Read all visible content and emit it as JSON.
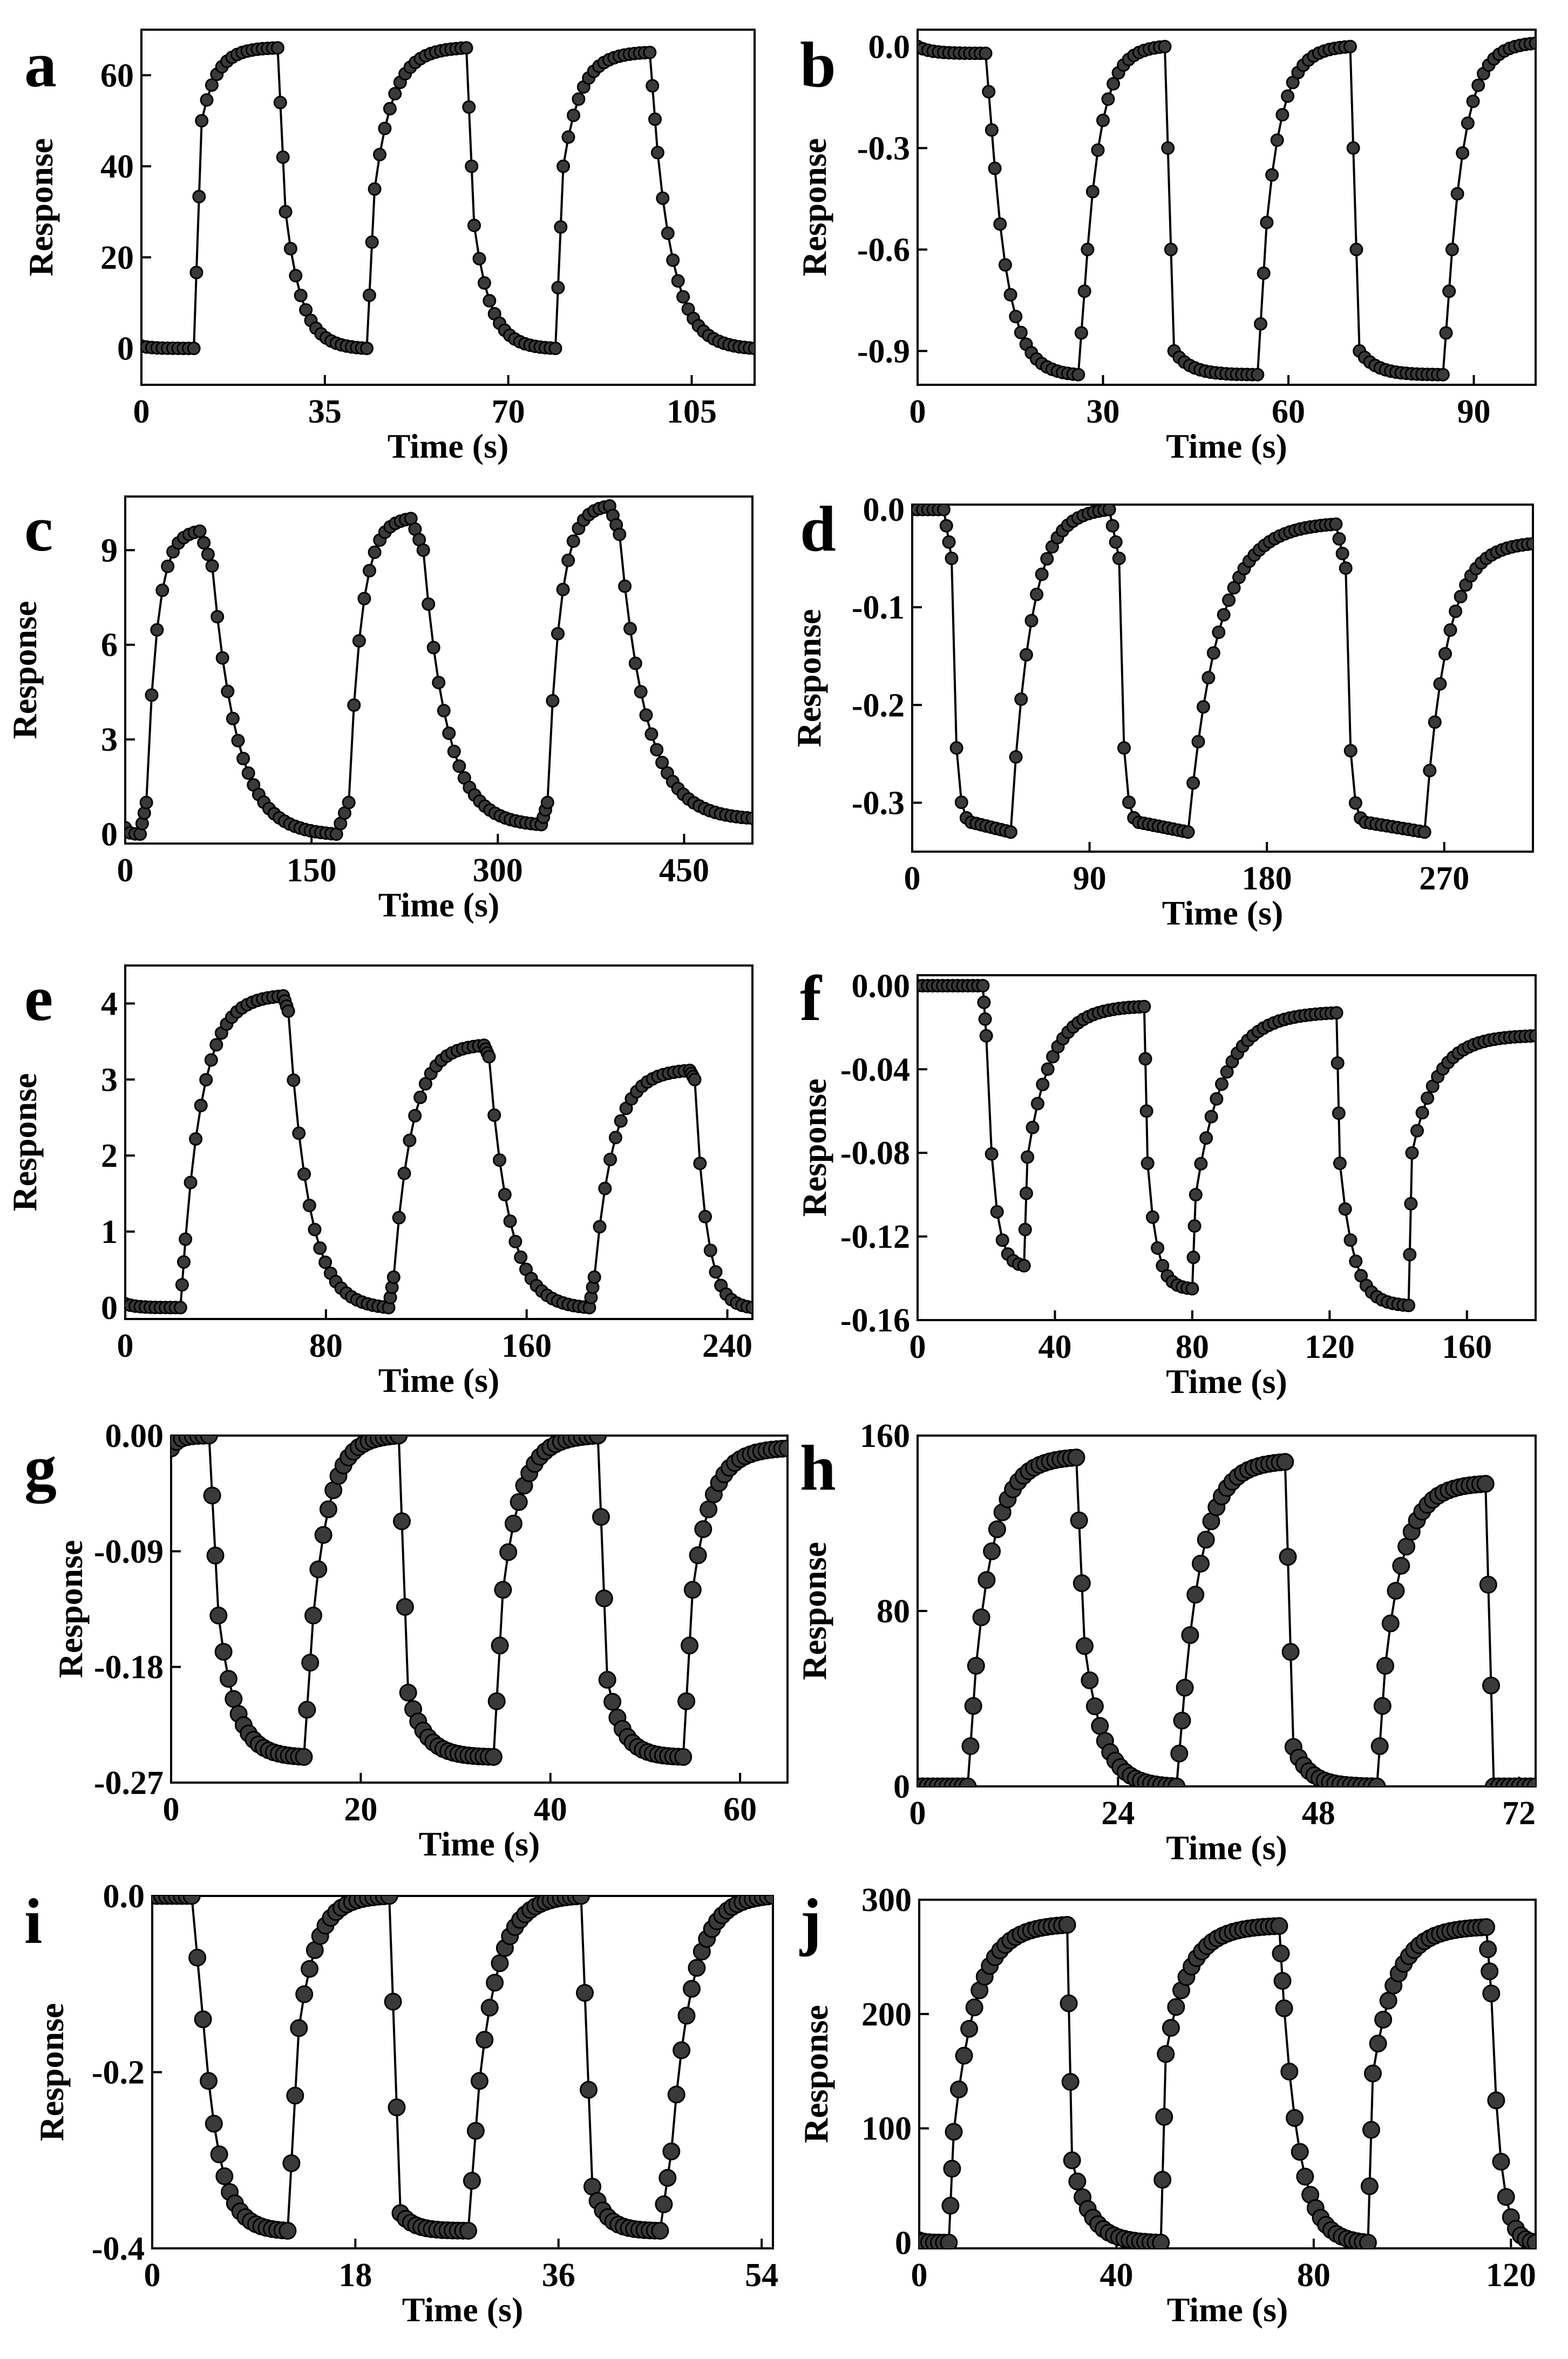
{
  "chart_data": [
    {
      "label": "a",
      "type": "scatter",
      "ylabel": "Response",
      "xlabel": "Time (s)",
      "xticks": [
        0,
        35,
        70,
        105
      ],
      "yticks": [
        0,
        20,
        40,
        60
      ],
      "xlim": [
        0,
        117
      ],
      "ylim": [
        -8,
        70
      ],
      "series": [
        {
          "name": "response",
          "x": [
            0,
            10,
            11.5,
            26,
            27.5,
            43,
            44.5,
            62,
            63.5,
            79,
            80.5,
            97,
            98.5,
            117
          ],
          "y": [
            0.5,
            0,
            50,
            66,
            30,
            0,
            35,
            66,
            27,
            0,
            40,
            65,
            43,
            0
          ]
        }
      ]
    },
    {
      "label": "b",
      "type": "scatter",
      "ylabel": "Response",
      "xlabel": "Time (s)",
      "xticks": [
        0,
        30,
        60,
        90
      ],
      "yticks": [
        0.0,
        -0.3,
        -0.6,
        -0.9
      ],
      "xlim": [
        0,
        100
      ],
      "ylim": [
        -1.0,
        0.05
      ],
      "series": [
        {
          "name": "response",
          "x": [
            0,
            11,
            12.5,
            26,
            27.5,
            40,
            41.5,
            55,
            56.5,
            70,
            71.5,
            85,
            86.5,
            100
          ],
          "y": [
            0,
            -0.02,
            -0.36,
            -0.97,
            -0.6,
            0,
            -0.9,
            -0.97,
            -0.52,
            0,
            -0.9,
            -0.97,
            -0.6,
            0.01
          ]
        }
      ]
    },
    {
      "label": "c",
      "type": "scatter",
      "ylabel": "Response",
      "xlabel": "Time (s)",
      "xticks": [
        0,
        150,
        300,
        450
      ],
      "yticks": [
        0,
        3,
        6,
        9
      ],
      "xlim": [
        0,
        505
      ],
      "ylim": [
        -0.3,
        10.7
      ],
      "series": [
        {
          "name": "response",
          "x": [
            0,
            12,
            17,
            60,
            70,
            170,
            180,
            230,
            240,
            335,
            340,
            390,
            398,
            505
          ],
          "y": [
            0.2,
            0,
            1,
            9.6,
            8.5,
            0,
            1,
            10,
            9,
            0.3,
            1,
            10.4,
            9.5,
            0.5
          ]
        }
      ]
    },
    {
      "label": "d",
      "type": "scatter",
      "ylabel": "Response",
      "xlabel": "Time (s)",
      "xticks": [
        0,
        90,
        180,
        270
      ],
      "yticks": [
        0.0,
        -0.1,
        -0.2,
        -0.3
      ],
      "xlim": [
        0,
        315
      ],
      "ylim": [
        -0.35,
        0.005
      ],
      "series": [
        {
          "name": "response",
          "x": [
            0,
            16,
            20,
            30,
            50,
            100,
            105,
            115,
            140,
            215,
            220,
            230,
            260,
            315
          ],
          "y": [
            0,
            0,
            -0.05,
            -0.32,
            -0.33,
            0,
            -0.05,
            -0.32,
            -0.33,
            -0.015,
            -0.06,
            -0.32,
            -0.33,
            -0.035
          ]
        }
      ]
    },
    {
      "label": "e",
      "type": "scatter",
      "ylabel": "Response",
      "xlabel": "Time (s)",
      "xticks": [
        0,
        80,
        160,
        240
      ],
      "yticks": [
        0,
        1,
        2,
        3,
        4
      ],
      "xlim": [
        0,
        250
      ],
      "ylim": [
        -0.15,
        4.5
      ],
      "series": [
        {
          "name": "response",
          "x": [
            0,
            22,
            24,
            63,
            65,
            105,
            107,
            143,
            145,
            185,
            187,
            225,
            227,
            250
          ],
          "y": [
            0.05,
            0,
            0.9,
            4.1,
            3.9,
            0,
            0.4,
            3.45,
            3.3,
            0,
            0.4,
            3.12,
            3.0,
            0
          ]
        }
      ]
    },
    {
      "label": "f",
      "type": "scatter",
      "ylabel": "Response",
      "xlabel": "Time (s)",
      "xticks": [
        0,
        40,
        80,
        120,
        160
      ],
      "yticks": [
        0.0,
        -0.04,
        -0.08,
        -0.12,
        -0.16
      ],
      "xlim": [
        0,
        180
      ],
      "ylim": [
        -0.16,
        0.005
      ],
      "series": [
        {
          "name": "response",
          "x": [
            0,
            19,
            20,
            31,
            32,
            66,
            67,
            80,
            81,
            122,
            123,
            143,
            144,
            180
          ],
          "y": [
            0,
            0,
            -0.024,
            -0.134,
            -0.082,
            -0.01,
            -0.085,
            -0.145,
            -0.1,
            -0.013,
            -0.085,
            -0.153,
            -0.08,
            -0.024
          ]
        }
      ]
    },
    {
      "label": "g",
      "type": "scatter",
      "ylabel": "Response",
      "xlabel": "Time (s)",
      "xticks": [
        0,
        20,
        40,
        60
      ],
      "yticks": [
        0.0,
        -0.09,
        -0.18,
        -0.27
      ],
      "xlim": [
        0,
        65
      ],
      "ylim": [
        -0.27,
        0.0
      ],
      "display_yticks": [
        "0.00",
        "-0.09",
        "-0.18",
        "-0.27"
      ],
      "series": [
        {
          "name": "response",
          "x": [
            0,
            4,
            5,
            14,
            15,
            24,
            25,
            34,
            35,
            45,
            46,
            54,
            55,
            65
          ],
          "y": [
            -0.01,
            0,
            -0.14,
            -0.25,
            -0.14,
            0,
            -0.2,
            -0.25,
            -0.12,
            0,
            -0.19,
            -0.25,
            -0.12,
            -0.01
          ]
        }
      ]
    },
    {
      "label": "h",
      "type": "scatter",
      "ylabel": "Response",
      "xlabel": "Time (s)",
      "xticks": [
        0,
        24,
        48,
        72
      ],
      "yticks": [
        0,
        80,
        160
      ],
      "xlim": [
        0,
        74
      ],
      "ylim": [
        0,
        160
      ],
      "series": [
        {
          "name": "response",
          "x": [
            0,
            6,
            7,
            19,
            20,
            31,
            32,
            44,
            45,
            55,
            56,
            68,
            69,
            74
          ],
          "y": [
            0,
            0,
            55,
            150,
            64,
            0,
            45,
            148,
            18,
            0,
            55,
            138,
            0,
            0
          ]
        }
      ]
    },
    {
      "label": "i",
      "type": "scatter",
      "ylabel": "Response",
      "xlabel": "Time (s)",
      "xticks": [
        0,
        18,
        36,
        54
      ],
      "yticks": [
        0.0,
        -0.2,
        -0.4
      ],
      "xlim": [
        0,
        55
      ],
      "ylim": [
        -0.4,
        0.0
      ],
      "display_yticks": [
        "0.0",
        "-0.2",
        "-0.4"
      ],
      "series": [
        {
          "name": "response",
          "x": [
            0,
            3.5,
            5,
            12,
            13,
            21,
            22,
            28,
            29,
            38,
            39,
            45,
            46,
            55
          ],
          "y": [
            0,
            0,
            -0.21,
            -0.38,
            -0.15,
            0,
            -0.36,
            -0.38,
            -0.21,
            0,
            -0.33,
            -0.38,
            -0.29,
            0
          ]
        }
      ]
    },
    {
      "label": "j",
      "type": "scatter",
      "ylabel": "Response",
      "xlabel": "Time (s)",
      "xticks": [
        0,
        40,
        80,
        120
      ],
      "yticks": [
        0,
        100,
        200,
        300
      ],
      "xlim": [
        0,
        125
      ],
      "ylim": [
        -5,
        300
      ],
      "series": [
        {
          "name": "response",
          "x": [
            0,
            6,
            7,
            30,
            31,
            49,
            50,
            73,
            74,
            91,
            92,
            115,
            116,
            125
          ],
          "y": [
            2,
            0,
            97,
            278,
            72,
            0,
            165,
            277,
            205,
            0,
            148,
            276,
            218,
            0
          ]
        }
      ]
    }
  ],
  "panels": [
    {
      "label": "a",
      "xlabel": "Time (s)",
      "ylabel": "Response",
      "xticks": [
        "0",
        "35",
        "70",
        "105"
      ],
      "yticks": [
        "0",
        "20",
        "40",
        "60"
      ]
    },
    {
      "label": "b",
      "xlabel": "Time (s)",
      "ylabel": "Response",
      "xticks": [
        "0",
        "30",
        "60",
        "90"
      ],
      "yticks": [
        "0.0",
        "-0.3",
        "-0.6",
        "-0.9"
      ]
    },
    {
      "label": "c",
      "xlabel": "Time (s)",
      "ylabel": "Response",
      "xticks": [
        "0",
        "150",
        "300",
        "450"
      ],
      "yticks": [
        "0",
        "3",
        "6",
        "9"
      ]
    },
    {
      "label": "d",
      "xlabel": "Time (s)",
      "ylabel": "Response",
      "xticks": [
        "0",
        "90",
        "180",
        "270"
      ],
      "yticks": [
        "0.0",
        "-0.1",
        "-0.2",
        "-0.3"
      ]
    },
    {
      "label": "e",
      "xlabel": "Time (s)",
      "ylabel": "Response",
      "xticks": [
        "0",
        "80",
        "160",
        "240"
      ],
      "yticks": [
        "0",
        "1",
        "2",
        "3",
        "4"
      ]
    },
    {
      "label": "f",
      "xlabel": "Time (s)",
      "ylabel": "Response",
      "xticks": [
        "0",
        "40",
        "80",
        "120",
        "160"
      ],
      "yticks": [
        "0.00",
        "-0.04",
        "-0.08",
        "-0.12",
        "-0.16"
      ]
    },
    {
      "label": "g",
      "xlabel": "Time (s)",
      "ylabel": "Response",
      "xticks": [
        "0",
        "20",
        "40",
        "60"
      ],
      "yticks": [
        "0.00",
        "-0.09",
        "-0.18",
        "-0.27"
      ]
    },
    {
      "label": "h",
      "xlabel": "Time (s)",
      "ylabel": "Response",
      "xticks": [
        "0",
        "24",
        "48",
        "72"
      ],
      "yticks": [
        "0",
        "80",
        "160"
      ]
    },
    {
      "label": "i",
      "xlabel": "Time (s)",
      "ylabel": "Response",
      "xticks": [
        "0",
        "18",
        "36",
        "54"
      ],
      "yticks": [
        "0.0",
        "-0.2",
        "-0.4"
      ]
    },
    {
      "label": "j",
      "xlabel": "Time (s)",
      "ylabel": "Response",
      "xticks": [
        "0",
        "40",
        "80",
        "120"
      ],
      "yticks": [
        "0",
        "100",
        "200",
        "300"
      ]
    }
  ],
  "style": {
    "line_color": "#000000",
    "marker_fill": "#3a3a3a",
    "marker_edge": "#000000",
    "frame_color": "#000000"
  }
}
